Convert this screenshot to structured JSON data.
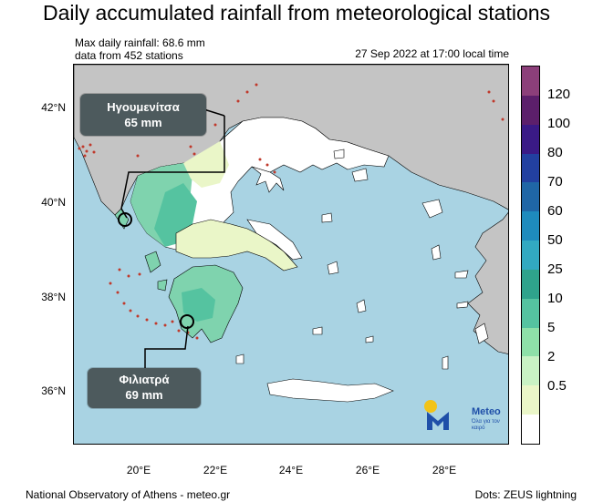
{
  "title": "Daily accumulated rainfall from meteorological stations",
  "info": {
    "max_rainfall": "Max daily rainfall: 68.6 mm",
    "stations": "data from 452 stations",
    "timestamp": "27 Sep 2022 at 17:00 local time"
  },
  "callouts": [
    {
      "name": "Ηγουμενίτσα",
      "value": "65 mm"
    },
    {
      "name": "Φιλιατρά",
      "value": "69 mm"
    }
  ],
  "lat_labels": [
    "42°N",
    "40°N",
    "38°N",
    "36°N"
  ],
  "lon_labels": [
    "20°E",
    "22°E",
    "24°E",
    "26°E",
    "28°E"
  ],
  "colorbar": {
    "labels": [
      "120",
      "100",
      "80",
      "70",
      "60",
      "50",
      "25",
      "10",
      "5",
      "2",
      "0.5"
    ],
    "colors": [
      "#8c3f7a",
      "#5c1f6b",
      "#3a1a86",
      "#2240a0",
      "#1f66a6",
      "#1e8bbd",
      "#32a9c1",
      "#2fa38c",
      "#55c3a0",
      "#8ee0a8",
      "#c9f2c4",
      "#eaf6c8",
      "#ffffff"
    ]
  },
  "logo": {
    "brand": "Meteo",
    "tagline": "Όλα για τον καιρό"
  },
  "footer": {
    "left": "National Observatory of Athens - meteo.gr",
    "right": "Dots: ZEUS lightning"
  }
}
